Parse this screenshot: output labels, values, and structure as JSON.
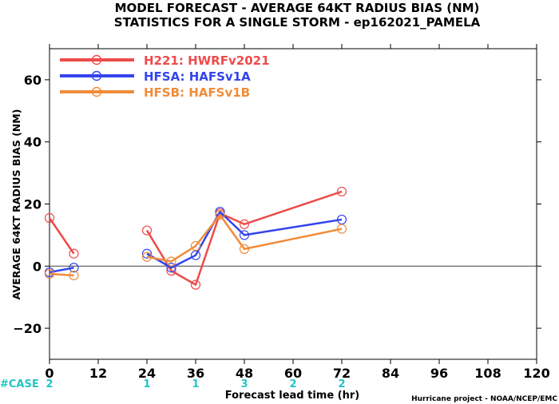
{
  "chart_data": {
    "type": "line",
    "title_line1": "MODEL FORECAST - AVERAGE 64KT RADIUS BIAS (NM)",
    "title_line2": "STATISTICS FOR A SINGLE STORM - ep162021_PAMELA",
    "xlabel": "Forecast lead time (hr)",
    "ylabel": "AVERAGE 64KT RADIUS BIAS (NM)",
    "xlim": [
      0,
      120
    ],
    "ylim": [
      -30,
      70
    ],
    "xticks": [
      0,
      12,
      24,
      36,
      48,
      60,
      72,
      84,
      96,
      108,
      120
    ],
    "yticks": [
      -20,
      0,
      20,
      40,
      60
    ],
    "ytick_labels": [
      "−20",
      "0",
      "20",
      "40",
      "60"
    ],
    "zero_line": true,
    "legend_position": "top-left",
    "series": [
      {
        "name": "H221: HWRFv2021",
        "color": "#ee4b4b",
        "segments": [
          {
            "x": [
              0,
              6
            ],
            "y": [
              15.5,
              4
            ]
          },
          {
            "x": [
              24,
              30,
              36,
              42,
              48,
              72
            ],
            "y": [
              11.5,
              -1.5,
              -6,
              17,
              13.5,
              24
            ]
          }
        ]
      },
      {
        "name": "HFSA: HAFSv1A",
        "color": "#3344ee",
        "segments": [
          {
            "x": [
              0,
              6
            ],
            "y": [
              -2,
              -0.5
            ]
          },
          {
            "x": [
              24,
              30,
              36,
              42,
              48,
              72
            ],
            "y": [
              4,
              -0.5,
              3.5,
              17.5,
              10,
              15
            ]
          }
        ]
      },
      {
        "name": "HFSB: HAFSv1B",
        "color": "#f08c3a",
        "segments": [
          {
            "x": [
              0,
              6
            ],
            "y": [
              -2.5,
              -3
            ]
          },
          {
            "x": [
              24,
              30,
              36,
              42,
              48,
              72
            ],
            "y": [
              3,
              1.5,
              6.5,
              16.5,
              5.5,
              12
            ]
          }
        ]
      }
    ],
    "cases": {
      "label": "#CASE",
      "color": "#22c4c4",
      "x": [
        0,
        24,
        36,
        48,
        60,
        72
      ],
      "values": [
        "2",
        "1",
        "1",
        "3",
        "2",
        "2"
      ]
    }
  },
  "footer": {
    "credit": "Hurricane project - NOAA/NCEP/EMC"
  }
}
